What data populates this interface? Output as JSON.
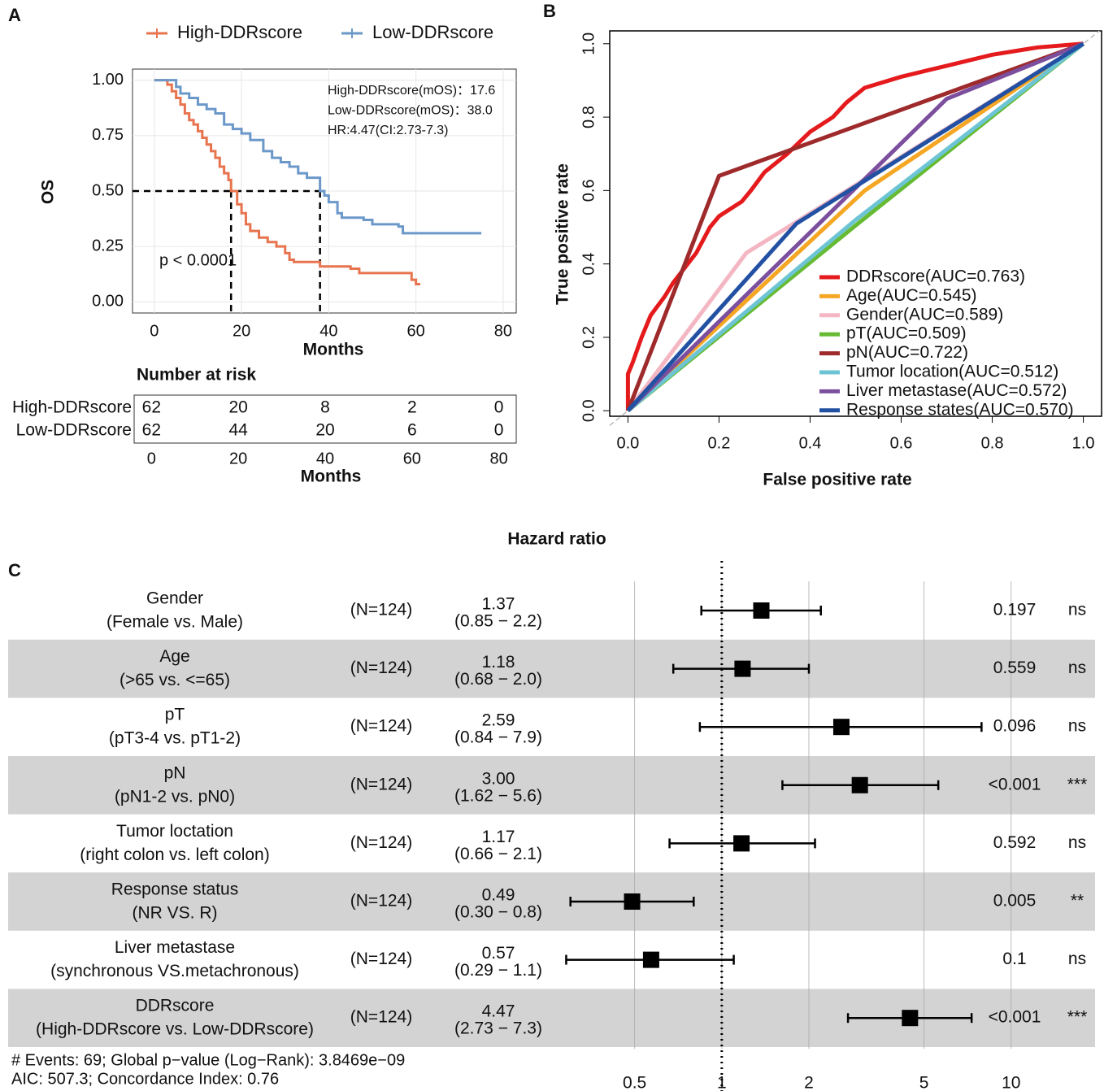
{
  "chart_data": [
    {
      "type": "step",
      "panel": "A",
      "xlabel": "Months",
      "ylabel": "OS",
      "xlim": [
        -5,
        83
      ],
      "ylim": [
        -0.05,
        1.05
      ],
      "xticks": [
        0,
        20,
        40,
        60,
        80
      ],
      "yticks": [
        {
          "value": 0,
          "label": "0.00"
        },
        {
          "value": 0.25,
          "label": "0.25"
        },
        {
          "value": 0.5,
          "label": "0.50"
        },
        {
          "value": 0.75,
          "label": "0.75"
        },
        {
          "value": 1,
          "label": "1.00"
        }
      ],
      "grid": true,
      "series": [
        {
          "name": "High-DDRscore",
          "color": "#e8744f",
          "x": [
            0,
            3,
            4,
            5,
            6,
            7,
            8,
            9,
            10,
            11,
            12,
            13,
            14,
            15,
            16,
            17,
            17.6,
            19,
            20,
            21,
            22,
            24,
            26,
            28,
            30,
            31,
            32,
            37,
            38,
            45,
            47,
            58,
            59,
            60,
            61
          ],
          "values": [
            1,
            0.98,
            0.95,
            0.92,
            0.89,
            0.85,
            0.82,
            0.8,
            0.77,
            0.74,
            0.71,
            0.68,
            0.65,
            0.61,
            0.58,
            0.55,
            0.5,
            0.44,
            0.4,
            0.35,
            0.32,
            0.29,
            0.27,
            0.25,
            0.22,
            0.19,
            0.18,
            0.18,
            0.16,
            0.15,
            0.13,
            0.13,
            0.1,
            0.08,
            0.08
          ]
        },
        {
          "name": "Low-DDRscore",
          "color": "#6b98c9",
          "x": [
            0,
            4,
            5,
            6,
            8,
            10,
            12,
            14,
            16,
            18,
            20,
            22,
            24,
            25,
            27,
            29,
            31,
            33,
            35,
            38,
            39,
            40,
            42,
            43,
            48,
            50,
            56,
            57,
            75
          ],
          "values": [
            1,
            1,
            0.97,
            0.94,
            0.92,
            0.89,
            0.87,
            0.85,
            0.8,
            0.78,
            0.76,
            0.73,
            0.73,
            0.68,
            0.65,
            0.63,
            0.61,
            0.58,
            0.56,
            0.5,
            0.48,
            0.45,
            0.4,
            0.38,
            0.37,
            0.35,
            0.34,
            0.31,
            0.31
          ]
        }
      ],
      "median_lines": {
        "x": [
          17.6,
          38.0
        ],
        "y": 0.5
      },
      "annotations": [
        "High-DDRscore(mOS)：17.6",
        "Low-DDRscore(mOS)：38.0",
        "HR:4.47(CI:2.73-7.3)"
      ],
      "p_label": "p < 0.0001",
      "risk_table": {
        "title": "Number at risk",
        "xlabel": "Months",
        "xlim": [
          -4,
          84
        ],
        "xticks": [
          0,
          20,
          40,
          60,
          80
        ],
        "rows": [
          {
            "name": "High-DDRscore",
            "color": "#e8744f",
            "values": [
              62,
              20,
              8,
              2,
              0
            ]
          },
          {
            "name": "Low-DDRscore",
            "color": "#6b98c9",
            "values": [
              62,
              44,
              20,
              6,
              0
            ]
          }
        ]
      }
    },
    {
      "type": "line",
      "panel": "B",
      "xlabel": "False positive rate",
      "ylabel": "True positive rate",
      "xlim": [
        -0.04,
        1.04
      ],
      "ylim": [
        -0.015,
        1.035
      ],
      "xticks": [
        {
          "value": 0,
          "label": "0.0"
        },
        0.2,
        0.4,
        0.6,
        0.8,
        {
          "value": 1,
          "label": "1.0"
        }
      ],
      "yticks": [
        {
          "value": 0,
          "label": "0.0"
        },
        0.2,
        0.4,
        0.6,
        0.8,
        {
          "value": 1,
          "label": "1.0"
        }
      ],
      "series": [
        {
          "name": "DDRscore(AUC=0.763)",
          "color": "#e41a1c",
          "x": [
            0,
            0,
            0.01,
            0.03,
            0.05,
            0.08,
            0.1,
            0.15,
            0.18,
            0.2,
            0.25,
            0.27,
            0.3,
            0.35,
            0.4,
            0.45,
            0.48,
            0.52,
            0.6,
            0.7,
            0.8,
            0.9,
            1
          ],
          "values": [
            0,
            0.1,
            0.13,
            0.2,
            0.26,
            0.31,
            0.35,
            0.43,
            0.5,
            0.53,
            0.57,
            0.6,
            0.65,
            0.7,
            0.76,
            0.8,
            0.84,
            0.88,
            0.91,
            0.94,
            0.97,
            0.99,
            1
          ]
        },
        {
          "name": "Age(AUC=0.545)",
          "color": "#f5a623",
          "x": [
            0,
            0.52,
            1
          ],
          "values": [
            0,
            0.6,
            1
          ]
        },
        {
          "name": "Gender(AUC=0.589)",
          "color": "#f4b6c2",
          "x": [
            0,
            0.26,
            1
          ],
          "values": [
            0,
            0.43,
            1
          ]
        },
        {
          "name": "pT(AUC=0.509)",
          "color": "#66bb33",
          "x": [
            0,
            0.5,
            1
          ],
          "values": [
            0,
            0.505,
            1
          ]
        },
        {
          "name": "pN(AUC=0.722)",
          "color": "#9e2a2b",
          "x": [
            0,
            0.2,
            1
          ],
          "values": [
            0,
            0.64,
            1
          ]
        },
        {
          "name": "Tumor location(AUC=0.512)",
          "color": "#6cc4d4",
          "x": [
            0,
            0.5,
            1
          ],
          "values": [
            0,
            0.52,
            1
          ]
        },
        {
          "name": "Liver metastase(AUC=0.572)",
          "color": "#7b4f9e",
          "x": [
            0,
            0.7,
            1
          ],
          "values": [
            0,
            0.85,
            1
          ]
        },
        {
          "name": "Response states(AUC=0.570)",
          "color": "#2251a3",
          "x": [
            0,
            0.37,
            1
          ],
          "values": [
            0,
            0.51,
            1
          ]
        }
      ]
    },
    {
      "type": "forest",
      "panel": "C",
      "title": "Hazard ratio",
      "log": true,
      "xlim": [
        0.2,
        12
      ],
      "xticks": [
        0.5,
        1,
        2,
        5,
        10
      ],
      "reference": 1,
      "labels": [
        [
          "Gender",
          "(Female vs. Male)"
        ],
        [
          "Age",
          "(>65 vs. <=65)"
        ],
        [
          "pT",
          "(pT3-4 vs. pT1-2)"
        ],
        [
          "pN",
          "(pN1-2 vs. pN0)"
        ],
        [
          "Tumor loctation",
          "(right colon vs. left colon)"
        ],
        [
          "Response status",
          "(NR VS. R)"
        ],
        [
          "Liver metastase",
          "(synchronous VS.metachronous)"
        ],
        [
          "DDRscore",
          "(High-DDRscore vs. Low-DDRscore)"
        ]
      ],
      "n_labels": [
        "(N=124)",
        "(N=124)",
        "(N=124)",
        "(N=124)",
        "(N=124)",
        "(N=124)",
        "(N=124)",
        "(N=124)"
      ],
      "values": [
        1.37,
        1.18,
        2.59,
        3.0,
        1.17,
        0.49,
        0.57,
        4.47
      ],
      "value_labels": [
        "1.37",
        "1.18",
        "2.59",
        "3.00",
        "1.17",
        "0.49",
        "0.57",
        "4.47"
      ],
      "lower": [
        0.85,
        0.68,
        0.84,
        1.62,
        0.66,
        0.3,
        0.29,
        2.73
      ],
      "upper": [
        2.2,
        2.0,
        7.9,
        5.6,
        2.1,
        0.8,
        1.1,
        7.3
      ],
      "ci_labels": [
        "(0.85 − 2.2)",
        "(0.68 − 2.0)",
        "(0.84 − 7.9)",
        "(1.62 − 5.6)",
        "(0.66 − 2.1)",
        "(0.30 − 0.8)",
        "(0.29 − 1.1)",
        "(2.73 − 7.3)"
      ],
      "p_labels": [
        "0.197",
        "0.559",
        "0.096",
        "<0.001",
        "0.592",
        "0.005",
        "0.1",
        "<0.001"
      ],
      "sig": [
        "ns",
        "ns",
        "ns",
        "***",
        "ns",
        "**",
        "ns",
        "***"
      ],
      "footer": [
        "# Events: 69; Global p−value (Log−Rank): 3.8469e−09",
        "AIC: 507.3; Concordance Index: 0.76"
      ]
    }
  ]
}
